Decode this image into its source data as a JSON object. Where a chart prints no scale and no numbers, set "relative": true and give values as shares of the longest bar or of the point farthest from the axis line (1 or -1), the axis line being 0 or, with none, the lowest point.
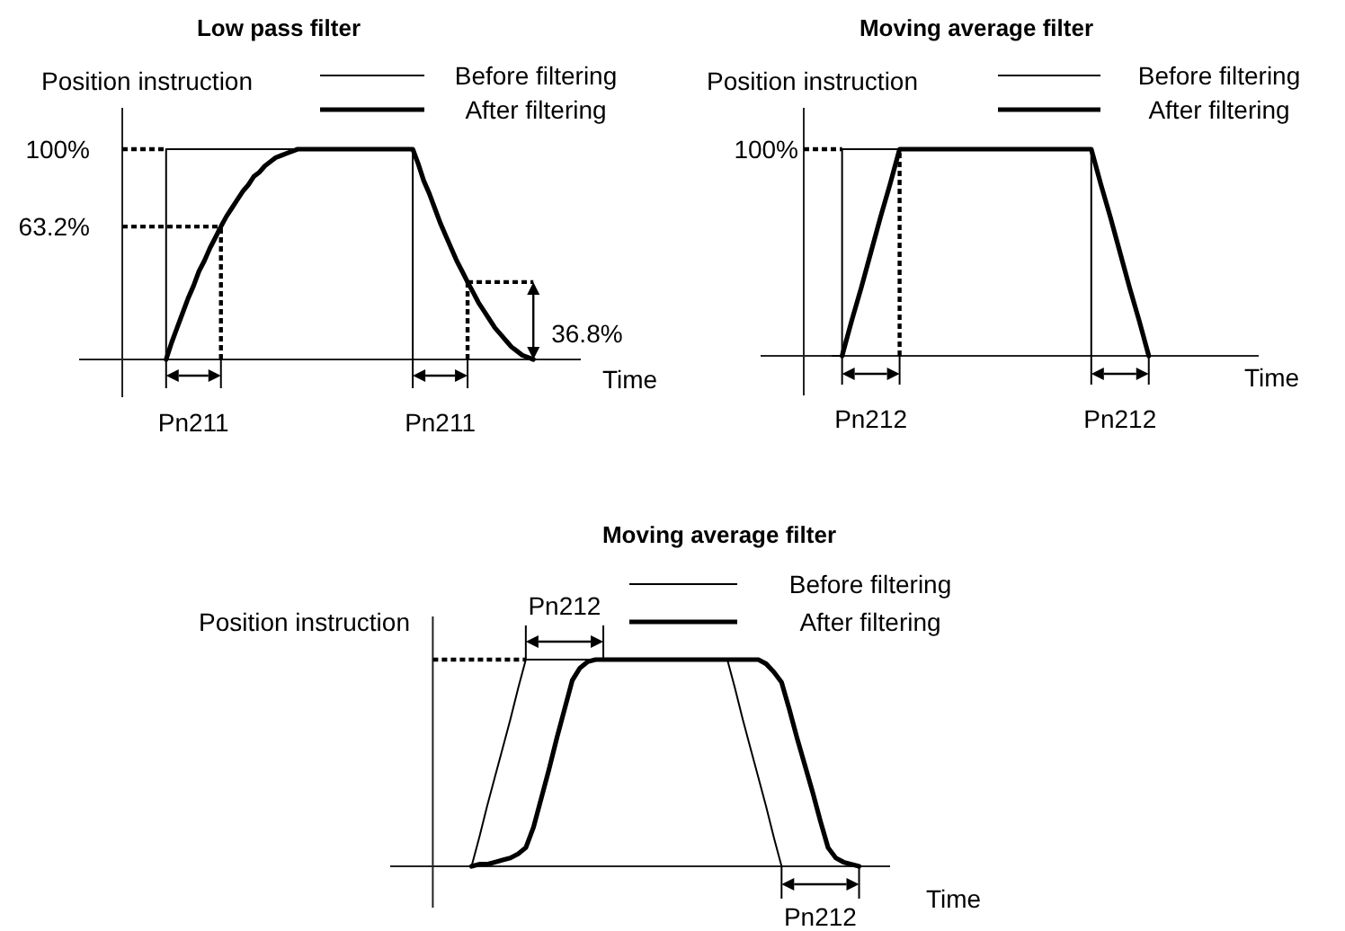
{
  "chart_data": [
    {
      "type": "line",
      "title": "Low pass filter",
      "ylabel": "Position instruction",
      "xlabel": "Time",
      "relative": true,
      "legend": "top right",
      "categories": [
        null,
        null,
        null,
        null,
        null,
        null,
        null,
        null,
        null,
        null,
        null,
        null,
        null,
        null,
        null,
        null,
        null,
        null,
        null,
        null,
        null,
        null,
        null,
        null,
        null,
        null,
        null,
        null,
        null,
        null,
        null,
        null,
        null,
        null,
        null,
        null,
        null,
        null,
        null,
        null,
        null,
        null,
        null,
        null,
        null,
        null,
        null,
        null,
        null,
        null,
        null,
        null,
        null,
        null,
        null,
        null,
        null,
        null,
        null,
        null,
        null,
        null,
        null,
        null,
        null,
        null,
        null,
        null,
        null,
        null,
        null,
        null,
        null,
        null,
        null,
        null,
        null,
        null,
        null,
        null,
        null,
        null,
        null,
        null
      ],
      "series": [
        {
          "name": "Before filtering",
          "type": "step",
          "color": "#000000",
          "values": [
            null,
            null,
            null,
            null,
            null,
            null,
            null,
            0,
            1,
            1,
            1,
            1,
            1,
            1,
            1,
            1,
            1,
            1,
            1,
            1,
            1,
            1,
            1,
            1,
            1,
            1,
            1,
            1,
            1,
            1,
            1,
            1,
            1,
            1,
            1,
            1,
            1,
            1,
            1,
            1,
            1,
            1,
            1,
            1,
            1,
            1,
            1,
            1,
            1,
            1,
            1,
            1,
            1,
            0,
            null,
            null,
            null,
            null,
            null,
            null,
            null,
            null,
            null,
            null,
            null,
            null,
            null,
            null,
            null,
            null,
            null,
            null,
            null,
            null,
            null,
            null,
            null,
            null,
            null,
            null,
            null,
            null,
            null,
            null
          ]
        },
        {
          "name": "After filtering",
          "color": "#000000",
          "values": [
            null,
            null,
            null,
            null,
            null,
            null,
            null,
            null,
            0,
            0.08,
            0.15,
            0.22,
            0.29,
            0.35,
            0.42,
            0.47,
            0.53,
            0.58,
            0.632,
            0.68,
            0.72,
            0.76,
            0.8,
            0.83,
            0.87,
            0.89,
            0.92,
            0.94,
            0.96,
            0.97,
            0.98,
            0.99,
            1,
            1,
            1,
            1,
            1,
            1,
            1,
            1,
            1,
            1,
            1,
            1,
            1,
            1,
            1,
            1,
            1,
            1,
            1,
            1,
            1,
            1,
            0.93,
            0.85,
            0.79,
            0.72,
            0.65,
            0.59,
            0.53,
            0.47,
            0.42,
            0.368,
            0.32,
            0.27,
            0.23,
            0.19,
            0.15,
            0.12,
            0.09,
            0.06,
            0.04,
            0.02,
            0.01,
            0,
            null,
            null,
            null,
            null,
            null,
            null,
            null,
            null
          ]
        }
      ],
      "ref_lines": [
        {
          "axis": "y",
          "value": 1,
          "label": "100%",
          "line_style": "dashed"
        },
        {
          "axis": "y",
          "value": 0.632,
          "label": "63.2%",
          "line_style": "dashed"
        }
      ],
      "annotations": [
        "Pn211",
        "Pn211",
        "36.8%"
      ]
    },
    {
      "type": "line",
      "title": "Moving average filter",
      "ylabel": "Position instruction",
      "xlabel": "Time",
      "relative": true,
      "legend": "top right",
      "categories": [
        null,
        null,
        null,
        null,
        null,
        null,
        null,
        null,
        null,
        null,
        null,
        null,
        null,
        null,
        null,
        null,
        null,
        null,
        null,
        null,
        null,
        null,
        null,
        null,
        null,
        null,
        null,
        null,
        null,
        null,
        null,
        null,
        null,
        null,
        null,
        null,
        null,
        null,
        null,
        null,
        null,
        null,
        null,
        null,
        null,
        null,
        null,
        null
      ],
      "series": [
        {
          "name": "Before filtering",
          "type": "step",
          "color": "#000000",
          "values": [
            null,
            null,
            null,
            0,
            1,
            1,
            1,
            1,
            1,
            1,
            1,
            1,
            1,
            1,
            1,
            1,
            1,
            1,
            1,
            1,
            1,
            1,
            1,
            1,
            1,
            1,
            1,
            1,
            1,
            1,
            0,
            null,
            null,
            null,
            null,
            null,
            null,
            null,
            null,
            null,
            null,
            null,
            null,
            null,
            null,
            null,
            null,
            null
          ]
        },
        {
          "name": "After filtering",
          "color": "#000000",
          "values": [
            null,
            null,
            null,
            null,
            0,
            0.17,
            0.33,
            0.5,
            0.67,
            0.83,
            1,
            1,
            1,
            1,
            1,
            1,
            1,
            1,
            1,
            1,
            1,
            1,
            1,
            1,
            1,
            1,
            1,
            1,
            1,
            1,
            1,
            0.83,
            0.67,
            0.5,
            0.33,
            0.17,
            0,
            null,
            null,
            null,
            null,
            null,
            null,
            null,
            null,
            null,
            null,
            null
          ]
        }
      ],
      "ref_lines": [
        {
          "axis": "y",
          "value": 1,
          "label": "100%",
          "line_style": "dashed"
        }
      ],
      "annotations": [
        "Pn212",
        "Pn212"
      ]
    },
    {
      "type": "line",
      "title": "Moving average filter",
      "ylabel": "Position instruction",
      "xlabel": "Time",
      "relative": true,
      "legend": "top right",
      "categories": [
        null,
        null,
        null,
        null,
        null,
        null,
        null,
        null,
        null,
        null,
        null,
        null,
        null,
        null,
        null,
        null,
        null,
        null,
        null,
        null,
        null,
        null,
        null,
        null,
        null,
        null,
        null,
        null,
        null,
        null,
        null,
        null,
        null,
        null,
        null,
        null,
        null,
        null,
        null,
        null,
        null,
        null,
        null,
        null,
        null,
        null,
        null,
        null,
        null,
        null,
        null,
        null,
        null,
        null,
        null,
        null,
        null,
        null,
        null,
        null
      ],
      "series": [
        {
          "name": "Before filtering",
          "color": "#000000",
          "values": [
            null,
            null,
            null,
            null,
            null,
            0,
            0.14,
            0.29,
            0.43,
            0.57,
            0.71,
            0.86,
            1,
            1,
            1,
            1,
            1,
            1,
            1,
            1,
            1,
            1,
            1,
            1,
            1,
            1,
            1,
            1,
            1,
            1,
            1,
            1,
            1,
            1,
            1,
            1,
            1,
            1,
            1,
            0.86,
            0.71,
            0.57,
            0.43,
            0.29,
            0.14,
            0,
            null,
            null,
            null,
            null,
            null,
            null,
            null,
            null,
            null,
            null,
            null,
            null,
            null,
            null
          ]
        },
        {
          "name": "After filtering",
          "color": "#000000",
          "values": [
            null,
            null,
            null,
            null,
            null,
            0,
            0.01,
            0.01,
            0.02,
            0.03,
            0.04,
            0.06,
            0.09,
            0.19,
            0.33,
            0.47,
            0.62,
            0.76,
            0.9,
            0.96,
            0.99,
            1,
            1,
            1,
            1,
            1,
            1,
            1,
            1,
            1,
            1,
            1,
            1,
            1,
            1,
            1,
            1,
            1,
            1,
            1,
            1,
            1,
            1,
            0.98,
            0.94,
            0.89,
            0.76,
            0.62,
            0.49,
            0.36,
            0.22,
            0.09,
            0.04,
            0.02,
            0.01,
            0,
            null,
            null,
            null,
            null
          ]
        }
      ],
      "ref_lines": [
        {
          "axis": "y",
          "value": 1,
          "line_style": "dashed"
        }
      ],
      "annotations": [
        "Pn212",
        "Pn212"
      ]
    }
  ]
}
